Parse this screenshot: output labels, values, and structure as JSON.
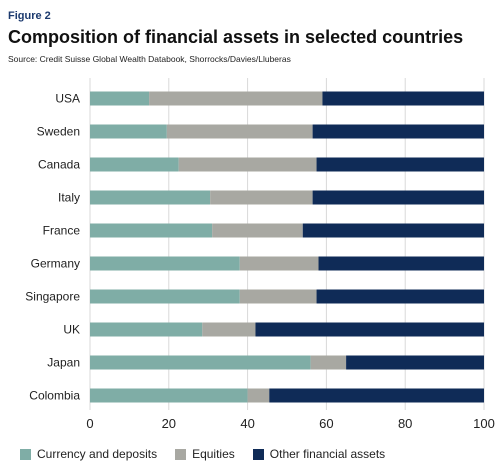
{
  "figure_label": "Figure 2",
  "title": "Composition of financial assets in selected countries",
  "source": "Source: Credit Suisse Global Wealth Databook, Shorrocks/Davies/Lluberas",
  "colors": {
    "currency": "#7fada6",
    "equities": "#a8a8a2",
    "other": "#0f2b57",
    "grid": "#d9d9d9"
  },
  "chart_data": {
    "type": "bar",
    "orientation": "horizontal",
    "stacked": true,
    "categories": [
      "USA",
      "Sweden",
      "Canada",
      "Italy",
      "France",
      "Germany",
      "Singapore",
      "UK",
      "Japan",
      "Colombia"
    ],
    "series": [
      {
        "name": "Currency and deposits",
        "color": "#7fada6",
        "values": [
          15,
          19.5,
          22.5,
          30.5,
          31,
          38,
          38,
          28.5,
          56,
          40
        ]
      },
      {
        "name": "Equities",
        "color": "#a8a8a2",
        "values": [
          44,
          37,
          35,
          26,
          23,
          20,
          19.5,
          13.5,
          9,
          5.5
        ]
      },
      {
        "name": "Other financial assets",
        "color": "#0f2b57",
        "values": [
          41,
          43.5,
          42.5,
          43.5,
          46,
          42,
          42.5,
          58,
          35,
          54.5
        ]
      }
    ],
    "xlim": [
      0,
      100
    ],
    "xticks": [
      "0",
      "20",
      "40",
      "60",
      "80",
      "100"
    ],
    "grid": "vertical",
    "legend_position": "bottom"
  }
}
